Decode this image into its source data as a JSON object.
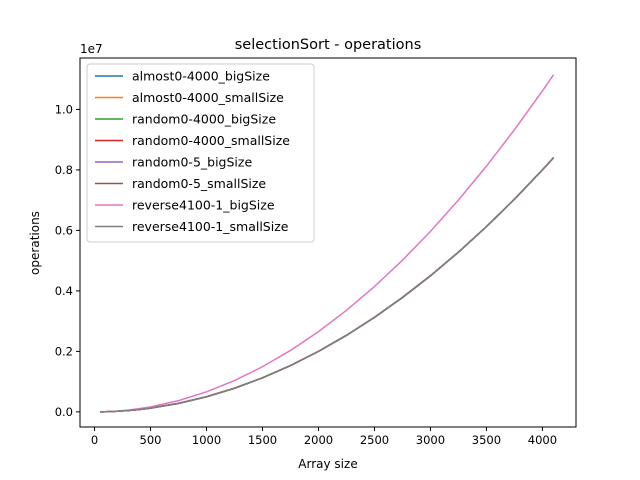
{
  "chart_data": {
    "type": "line",
    "title": "selectionSort - operations",
    "xlabel": "Array size",
    "ylabel": "operations",
    "offset_text": "1e7",
    "xlim": [
      -130,
      4300
    ],
    "ylim": [
      -500000,
      11700000
    ],
    "xticks": [
      0,
      500,
      1000,
      1500,
      2000,
      2500,
      3000,
      3500,
      4000
    ],
    "xtick_labels": [
      "0",
      "500",
      "1000",
      "1500",
      "2000",
      "2500",
      "3000",
      "3500",
      "4000"
    ],
    "yticks": [
      0,
      2000000,
      4000000,
      6000000,
      8000000,
      10000000
    ],
    "ytick_labels": [
      "0.0",
      "0.2",
      "0.4",
      "0.6",
      "0.8",
      "1.0"
    ],
    "grid": false,
    "legend_position": "top-left",
    "x": [
      50,
      100,
      200,
      300,
      400,
      500,
      750,
      1000,
      1250,
      1500,
      1750,
      2000,
      2250,
      2500,
      2750,
      3000,
      3250,
      3500,
      3750,
      4000,
      4100
    ],
    "series": [
      {
        "name": "almost0-4000_bigSize",
        "color": "#1f77b4",
        "values": [
          1300,
          5000,
          20000,
          45000,
          80000,
          125000,
          281000,
          500000,
          781000,
          1125000,
          1531000,
          2000000,
          2531000,
          3125000,
          3781000,
          4500000,
          5281000,
          6125000,
          7031000,
          8000000,
          8405000
        ]
      },
      {
        "name": "almost0-4000_smallSize",
        "color": "#ff7f0e",
        "values": [
          1300,
          5000,
          20000,
          45000,
          80000,
          125000,
          281000,
          500000,
          781000,
          1125000,
          1531000,
          2000000,
          2531000,
          3125000,
          3781000,
          4500000,
          5281000,
          6125000,
          7031000,
          8000000,
          8405000
        ]
      },
      {
        "name": "random0-4000_bigSize",
        "color": "#2ca02c",
        "values": [
          1300,
          5000,
          20000,
          45000,
          80000,
          125000,
          281000,
          500000,
          781000,
          1125000,
          1531000,
          2000000,
          2531000,
          3125000,
          3781000,
          4500000,
          5281000,
          6125000,
          7031000,
          8000000,
          8405000
        ]
      },
      {
        "name": "random0-4000_smallSize",
        "color": "#d62728",
        "values": [
          1300,
          5000,
          20000,
          45000,
          80000,
          125000,
          281000,
          500000,
          781000,
          1125000,
          1531000,
          2000000,
          2531000,
          3125000,
          3781000,
          4500000,
          5281000,
          6125000,
          7031000,
          8000000,
          8405000
        ]
      },
      {
        "name": "random0-5_bigSize",
        "color": "#9467bd",
        "values": [
          1300,
          5000,
          20000,
          45000,
          80000,
          125000,
          281000,
          500000,
          781000,
          1125000,
          1531000,
          2000000,
          2531000,
          3125000,
          3781000,
          4500000,
          5281000,
          6125000,
          7031000,
          8000000,
          8405000
        ]
      },
      {
        "name": "random0-5_smallSize",
        "color": "#8c564b",
        "values": [
          1300,
          5000,
          20000,
          45000,
          80000,
          125000,
          281000,
          500000,
          781000,
          1125000,
          1531000,
          2000000,
          2531000,
          3125000,
          3781000,
          4500000,
          5281000,
          6125000,
          7031000,
          8000000,
          8405000
        ]
      },
      {
        "name": "reverse4100-1_bigSize",
        "color": "#e377c2",
        "values": [
          1600,
          6600,
          26500,
          60000,
          106000,
          166000,
          373000,
          663000,
          1036000,
          1492000,
          2031000,
          2653000,
          3357000,
          4145000,
          5015000,
          5968000,
          7005000,
          8124000,
          9326000,
          10611000,
          11150000
        ]
      },
      {
        "name": "reverse4100-1_smallSize",
        "color": "#7f7f7f",
        "values": [
          1300,
          5000,
          20000,
          45000,
          80000,
          125000,
          281000,
          500000,
          781000,
          1125000,
          1531000,
          2000000,
          2531000,
          3125000,
          3781000,
          4500000,
          5281000,
          6125000,
          7031000,
          8000000,
          8405000
        ]
      }
    ]
  }
}
